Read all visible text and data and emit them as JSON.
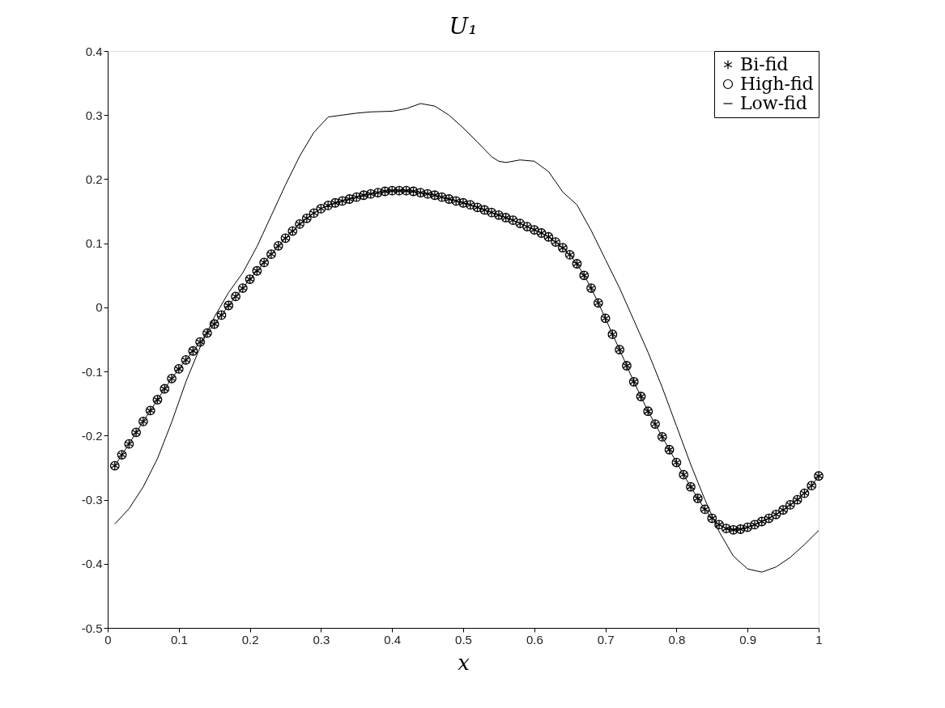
{
  "chart_data": {
    "type": "line",
    "title": "U₁",
    "xlabel": "x",
    "xlim": [
      0,
      1
    ],
    "ylim": [
      -0.5,
      0.4
    ],
    "xticks": [
      0,
      0.1,
      0.2,
      0.3,
      0.4,
      0.5,
      0.6,
      0.7,
      0.8,
      0.9,
      1
    ],
    "yticks": [
      -0.5,
      -0.4,
      -0.3,
      -0.2,
      -0.1,
      0,
      0.1,
      0.2,
      0.3,
      0.4
    ],
    "grid": false,
    "legend": "top right",
    "series": [
      {
        "name": "Bi-fid",
        "type": "scatter",
        "marker": "cross",
        "color": "#000000",
        "x": [
          0.01,
          0.02,
          0.03,
          0.04,
          0.05,
          0.06,
          0.07,
          0.08,
          0.09,
          0.1,
          0.11,
          0.12,
          0.13,
          0.14,
          0.15,
          0.16,
          0.17,
          0.18,
          0.19,
          0.2,
          0.21,
          0.22,
          0.23,
          0.24,
          0.25,
          0.26,
          0.27,
          0.28,
          0.29,
          0.3,
          0.31,
          0.32,
          0.33,
          0.34,
          0.35,
          0.36,
          0.37,
          0.38,
          0.39,
          0.4,
          0.41,
          0.42,
          0.43,
          0.44,
          0.45,
          0.46,
          0.47,
          0.48,
          0.49,
          0.5,
          0.51,
          0.52,
          0.53,
          0.54,
          0.55,
          0.56,
          0.57,
          0.58,
          0.59,
          0.6,
          0.61,
          0.62,
          0.63,
          0.64,
          0.65,
          0.66,
          0.67,
          0.68,
          0.69,
          0.7,
          0.71,
          0.72,
          0.73,
          0.74,
          0.75,
          0.76,
          0.77,
          0.78,
          0.79,
          0.8,
          0.81,
          0.82,
          0.83,
          0.84,
          0.85,
          0.86,
          0.87,
          0.88,
          0.89,
          0.9,
          0.91,
          0.92,
          0.93,
          0.94,
          0.95,
          0.96,
          0.97,
          0.98,
          0.99,
          1
        ],
        "values": [
          -0.247,
          -0.23,
          -0.213,
          -0.195,
          -0.178,
          -0.161,
          -0.144,
          -0.127,
          -0.111,
          -0.096,
          -0.082,
          -0.068,
          -0.054,
          -0.04,
          -0.026,
          -0.012,
          0.003,
          0.017,
          0.03,
          0.044,
          0.057,
          0.07,
          0.083,
          0.096,
          0.108,
          0.119,
          0.13,
          0.139,
          0.147,
          0.154,
          0.159,
          0.163,
          0.166,
          0.169,
          0.172,
          0.175,
          0.177,
          0.179,
          0.181,
          0.182,
          0.182,
          0.182,
          0.181,
          0.179,
          0.177,
          0.175,
          0.172,
          0.169,
          0.166,
          0.163,
          0.16,
          0.156,
          0.152,
          0.148,
          0.144,
          0.14,
          0.136,
          0.131,
          0.126,
          0.121,
          0.116,
          0.11,
          0.102,
          0.093,
          0.082,
          0.068,
          0.05,
          0.03,
          0.007,
          -0.017,
          -0.042,
          -0.066,
          -0.091,
          -0.116,
          -0.139,
          -0.162,
          -0.182,
          -0.202,
          -0.222,
          -0.242,
          -0.261,
          -0.28,
          -0.298,
          -0.315,
          -0.329,
          -0.339,
          -0.345,
          -0.347,
          -0.346,
          -0.343,
          -0.339,
          -0.334,
          -0.329,
          -0.323,
          -0.316,
          -0.308,
          -0.3,
          -0.29,
          -0.278,
          -0.263
        ]
      },
      {
        "name": "High-fid",
        "marker": "circle",
        "color": "#000000",
        "x": [
          0.01,
          0.02,
          0.03,
          0.04,
          0.05,
          0.06,
          0.07,
          0.08,
          0.09,
          0.1,
          0.11,
          0.12,
          0.13,
          0.14,
          0.15,
          0.16,
          0.17,
          0.18,
          0.19,
          0.2,
          0.21,
          0.22,
          0.23,
          0.24,
          0.25,
          0.26,
          0.27,
          0.28,
          0.29,
          0.3,
          0.31,
          0.32,
          0.33,
          0.34,
          0.35,
          0.36,
          0.37,
          0.38,
          0.39,
          0.4,
          0.41,
          0.42,
          0.43,
          0.44,
          0.45,
          0.46,
          0.47,
          0.48,
          0.49,
          0.5,
          0.51,
          0.52,
          0.53,
          0.54,
          0.55,
          0.56,
          0.57,
          0.58,
          0.59,
          0.6,
          0.61,
          0.62,
          0.63,
          0.64,
          0.65,
          0.66,
          0.67,
          0.68,
          0.69,
          0.7,
          0.71,
          0.72,
          0.73,
          0.74,
          0.75,
          0.76,
          0.77,
          0.78,
          0.79,
          0.8,
          0.81,
          0.82,
          0.83,
          0.84,
          0.85,
          0.86,
          0.87,
          0.88,
          0.89,
          0.9,
          0.91,
          0.92,
          0.93,
          0.94,
          0.95,
          0.96,
          0.97,
          0.98,
          0.99,
          1
        ],
        "values": [
          -0.247,
          -0.23,
          -0.213,
          -0.195,
          -0.178,
          -0.161,
          -0.144,
          -0.127,
          -0.111,
          -0.096,
          -0.082,
          -0.068,
          -0.054,
          -0.04,
          -0.026,
          -0.012,
          0.003,
          0.017,
          0.03,
          0.044,
          0.057,
          0.07,
          0.083,
          0.096,
          0.108,
          0.119,
          0.13,
          0.139,
          0.147,
          0.154,
          0.159,
          0.163,
          0.166,
          0.169,
          0.172,
          0.175,
          0.177,
          0.179,
          0.181,
          0.182,
          0.182,
          0.182,
          0.181,
          0.179,
          0.177,
          0.175,
          0.172,
          0.169,
          0.166,
          0.163,
          0.16,
          0.156,
          0.152,
          0.148,
          0.144,
          0.14,
          0.136,
          0.131,
          0.126,
          0.121,
          0.116,
          0.11,
          0.102,
          0.093,
          0.082,
          0.068,
          0.05,
          0.03,
          0.007,
          -0.017,
          -0.042,
          -0.066,
          -0.091,
          -0.116,
          -0.139,
          -0.162,
          -0.182,
          -0.202,
          -0.222,
          -0.242,
          -0.261,
          -0.28,
          -0.298,
          -0.315,
          -0.329,
          -0.339,
          -0.345,
          -0.347,
          -0.346,
          -0.343,
          -0.339,
          -0.334,
          -0.329,
          -0.323,
          -0.316,
          -0.308,
          -0.3,
          -0.29,
          -0.278,
          -0.263
        ]
      },
      {
        "name": "Low-fid",
        "marker": "none",
        "color": "#000000",
        "x": [
          0.01,
          0.03,
          0.05,
          0.07,
          0.09,
          0.11,
          0.13,
          0.15,
          0.17,
          0.19,
          0.21,
          0.23,
          0.25,
          0.27,
          0.29,
          0.31,
          0.33,
          0.35,
          0.37,
          0.4,
          0.42,
          0.44,
          0.46,
          0.48,
          0.5,
          0.52,
          0.54,
          0.55,
          0.56,
          0.58,
          0.6,
          0.62,
          0.64,
          0.66,
          0.68,
          0.7,
          0.72,
          0.74,
          0.76,
          0.78,
          0.8,
          0.82,
          0.84,
          0.86,
          0.88,
          0.9,
          0.92,
          0.94,
          0.96,
          0.98,
          1
        ],
        "values": [
          -0.338,
          -0.314,
          -0.28,
          -0.236,
          -0.179,
          -0.116,
          -0.062,
          -0.015,
          0.023,
          0.054,
          0.095,
          0.143,
          0.191,
          0.236,
          0.273,
          0.297,
          0.3,
          0.303,
          0.305,
          0.306,
          0.31,
          0.318,
          0.314,
          0.3,
          0.28,
          0.258,
          0.235,
          0.228,
          0.226,
          0.23,
          0.228,
          0.212,
          0.18,
          0.16,
          0.12,
          0.075,
          0.03,
          -0.02,
          -0.07,
          -0.125,
          -0.185,
          -0.245,
          -0.3,
          -0.35,
          -0.388,
          -0.408,
          -0.413,
          -0.405,
          -0.39,
          -0.37,
          -0.348
        ]
      }
    ]
  }
}
